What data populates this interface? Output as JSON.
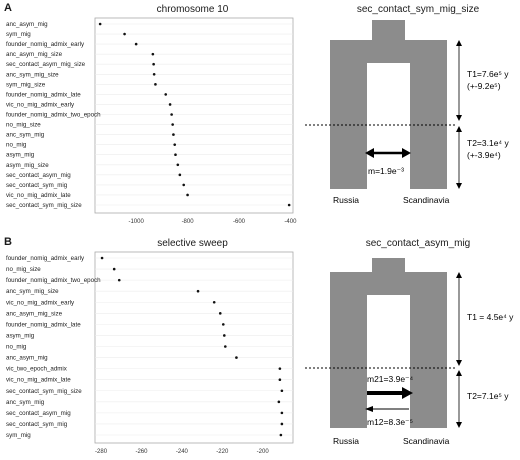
{
  "panels": {
    "A": {
      "letter": "A",
      "plot_title": "chromosome 10",
      "model_title": "sec_contact_sym_mig_size",
      "model": {
        "left_label": "Russia",
        "right_label": "Scandinavia",
        "migration_label": "m=1.9e⁻³",
        "migration_arrows": "bidirectional",
        "t1_label": "T1=7.6e⁵ y",
        "t1_ci": "(+-9.2e⁵)",
        "t2_label": "T2=3.1e⁴ y",
        "t2_ci": "(+-3.9e⁴)"
      }
    },
    "B": {
      "letter": "B",
      "plot_title": "selective sweep",
      "model_title": "sec_contact_asym_mig",
      "model": {
        "left_label": "Russia",
        "right_label": "Scandinavia",
        "m21_label": "m21=3.9e⁻⁴",
        "m12_label": "m12=8.3e⁻⁵",
        "t1_label": "T1 = 4.5e⁴ y",
        "t2_label": "T2=7.1e⁵ y"
      }
    }
  },
  "chart_data": [
    {
      "type": "scatter",
      "title": "chromosome 10",
      "xlabel": "",
      "ylabel": "",
      "xlim": [
        -1160,
        -390
      ],
      "xticks": [
        -1000,
        -800,
        -600,
        -400
      ],
      "grid": "horizontal",
      "categories": [
        "anc_asym_mig",
        "sym_mig",
        "founder_nomig_admix_early",
        "anc_asym_mig_size",
        "sec_contact_asym_mig_size",
        "anc_sym_mig_size",
        "sym_mig_size",
        "founder_nomig_admix_late",
        "vic_no_mig_admix_early",
        "founder_nomig_admix_two_epoch",
        "no_mig_size",
        "anc_sym_mig",
        "no_mig",
        "asym_mig",
        "asym_mig_size",
        "sec_contact_asym_mig",
        "sec_contact_sym_mig",
        "vic_no_mig_admix_late",
        "sec_contact_sym_mig_size"
      ],
      "values": [
        -1140,
        -1045,
        -1000,
        -935,
        -932,
        -930,
        -925,
        -885,
        -868,
        -862,
        -858,
        -855,
        -850,
        -847,
        -838,
        -830,
        -815,
        -800,
        -405
      ]
    },
    {
      "type": "scatter",
      "title": "selective sweep",
      "xlabel": "",
      "ylabel": "",
      "xlim": [
        -283,
        -185
      ],
      "xticks": [
        -280,
        -260,
        -240,
        -220,
        -200
      ],
      "grid": "horizontal",
      "categories": [
        "founder_nomig_admix_early",
        "no_mig_size",
        "founder_nomig_admix_two_epoch",
        "anc_sym_mig_size",
        "vic_no_mig_admix_early",
        "anc_asym_mig_size",
        "founder_nomig_admix_late",
        "asym_mig",
        "no_mig",
        "anc_asym_mig",
        "vic_two_epoch_admix",
        "vic_no_mig_admix_late",
        "sec_contact_sym_mig_size",
        "anc_sym_mig",
        "sec_contact_asym_mig",
        "sec_contact_sym_mig",
        "sym_mig"
      ],
      "values": [
        -279.5,
        -273.5,
        -271,
        -232,
        -224,
        -221,
        -219.5,
        -219,
        -218.5,
        -213,
        -191.5,
        -191.5,
        -190.5,
        -192,
        -190.5,
        -190.5,
        -191
      ]
    }
  ]
}
